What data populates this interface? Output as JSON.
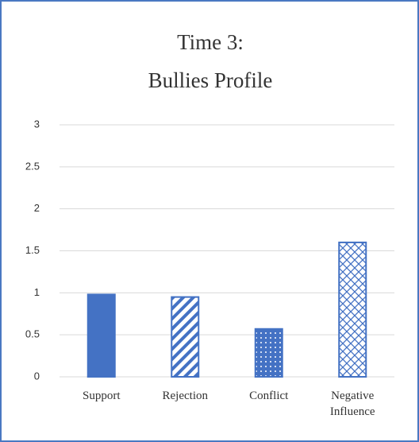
{
  "chart_data": {
    "type": "bar",
    "title": [
      "Time 3:",
      "Bullies Profile"
    ],
    "categories": [
      "Support",
      "Rejection",
      "Conflict",
      "Negative Influence"
    ],
    "values": [
      0.98,
      0.95,
      0.57,
      1.6
    ],
    "color": "#4472c4",
    "patterns": [
      "solid",
      "diagonal",
      "dots",
      "crosshatch"
    ],
    "ylim": [
      0,
      3
    ],
    "yticks": [
      0,
      0.5,
      1,
      1.5,
      2,
      2.5,
      3
    ],
    "grid": true
  }
}
